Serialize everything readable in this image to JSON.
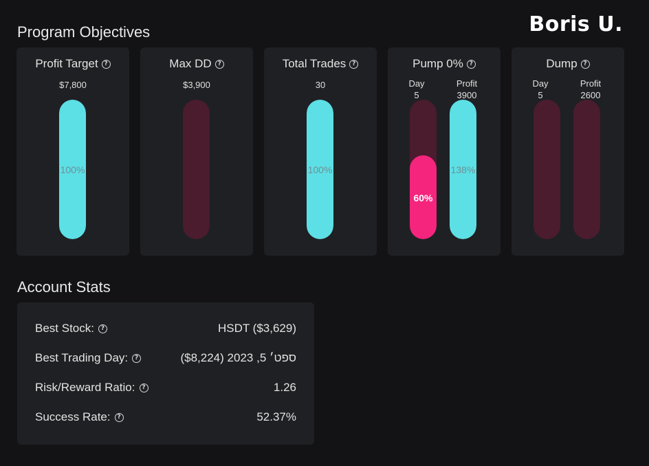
{
  "brand": "Boris U.",
  "program_objectives": {
    "title": "Program Objectives",
    "cards": [
      {
        "title": "Profit Target",
        "value": "$7,800",
        "fill_percent": 100,
        "bar_label": "100%"
      },
      {
        "title": "Max DD",
        "value": "$3,900",
        "fill_percent": 0,
        "bar_label": ""
      },
      {
        "title": "Total Trades",
        "value": "30",
        "fill_percent": 100,
        "bar_label": "100%"
      },
      {
        "title": "Pump 0%",
        "day_head": "Day",
        "day_value": "5",
        "day_fill_percent": 60,
        "day_label": "60%",
        "profit_head": "Profit",
        "profit_value": "3900",
        "profit_fill_percent": 100,
        "profit_label": "138%"
      },
      {
        "title": "Dump",
        "day_head": "Day",
        "day_value": "5",
        "day_fill_percent": 0,
        "profit_head": "Profit",
        "profit_value": "2600",
        "profit_fill_percent": 0
      }
    ]
  },
  "account_stats": {
    "title": "Account Stats",
    "rows": [
      {
        "label": "Best Stock:",
        "value": "HSDT ($3,629)"
      },
      {
        "label": "Best Trading Day:",
        "value": "ספט׳ 5, 2023 ($8,224)"
      },
      {
        "label": "Risk/Reward Ratio:",
        "value": "1.26"
      },
      {
        "label": "Success Rate:",
        "value": "52.37%"
      }
    ]
  },
  "colors": {
    "background": "#131315",
    "card": "#1f2023",
    "bar_track": "#4a1c2e",
    "bar_cyan": "#5ce0e6",
    "bar_pink": "#f5257e"
  },
  "icons": {
    "help": "question-circle-icon"
  }
}
